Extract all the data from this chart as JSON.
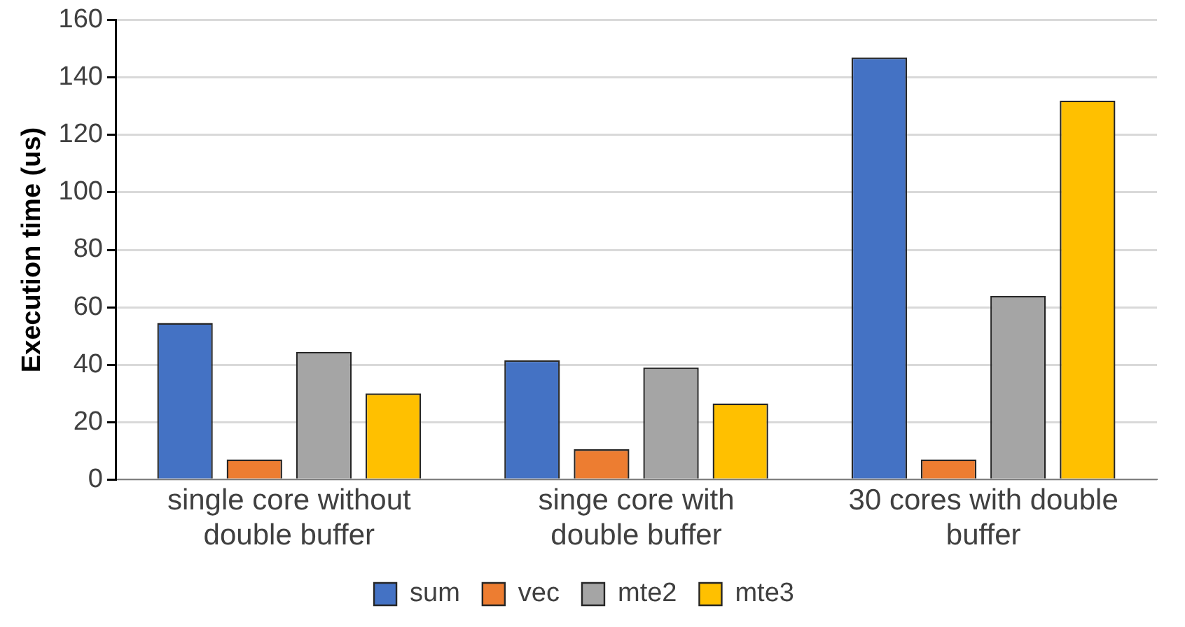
{
  "chart_data": {
    "type": "bar",
    "ylabel": "Execution time (us)",
    "categories": [
      "single core without double buffer",
      "singe core with double buffer",
      "30 cores with double buffer"
    ],
    "series": [
      {
        "name": "sum",
        "color": "#4472c4",
        "values": [
          54.5,
          41.5,
          147
        ]
      },
      {
        "name": "vec",
        "color": "#ed7d31",
        "values": [
          7,
          10.5,
          7
        ]
      },
      {
        "name": "mte2",
        "color": "#a5a5a5",
        "values": [
          44.5,
          39,
          64
        ]
      },
      {
        "name": "mte3",
        "color": "#ffc000",
        "values": [
          30,
          26.5,
          132
        ]
      }
    ],
    "ylim": [
      0,
      160
    ],
    "yticks": [
      0,
      20,
      40,
      60,
      80,
      100,
      120,
      140,
      160
    ],
    "grid": "y",
    "legend": "bottom"
  }
}
